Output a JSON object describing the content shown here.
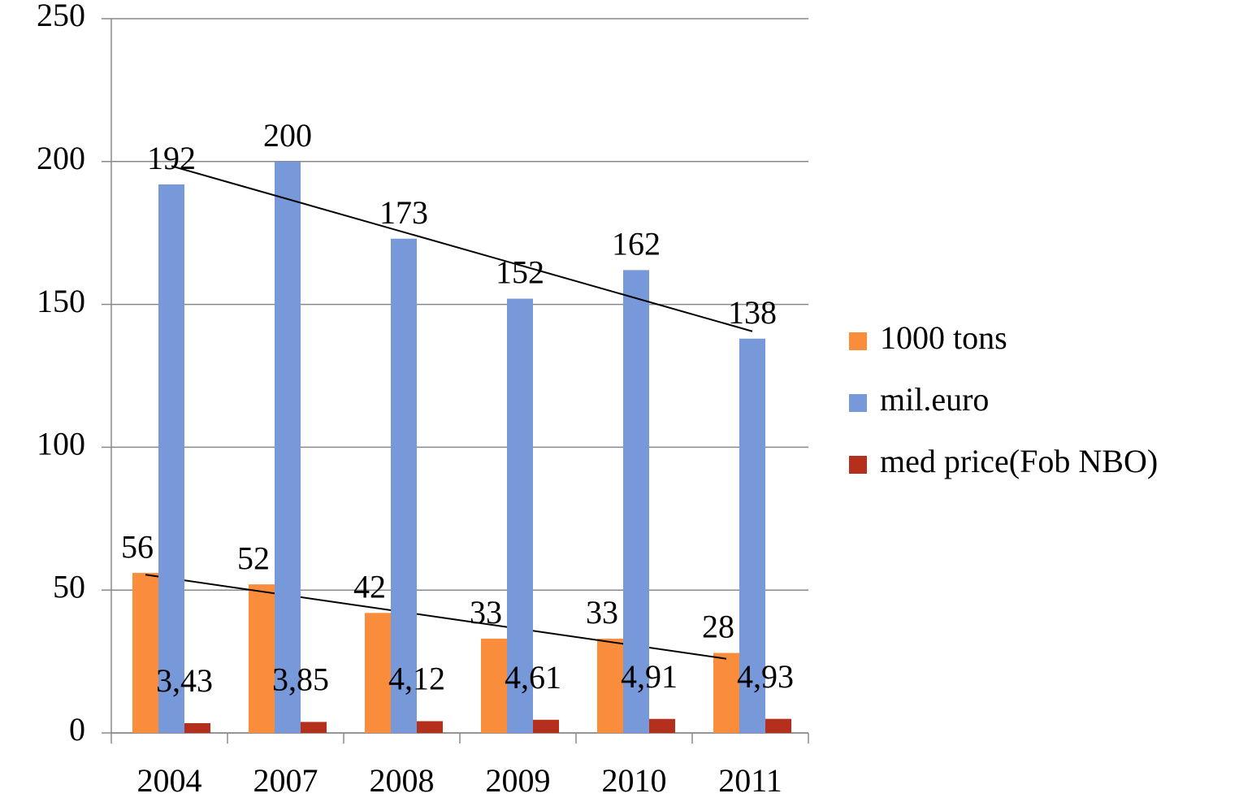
{
  "chart_data": {
    "type": "bar",
    "categories": [
      "2004",
      "2007",
      "2008",
      "2009",
      "2010",
      "2011"
    ],
    "series": [
      {
        "name": "1000 tons",
        "color": "#f98d3c",
        "values": [
          56,
          52,
          42,
          33,
          33,
          28
        ],
        "trendline": "linear"
      },
      {
        "name": "mil.euro",
        "color": "#7799d9",
        "values": [
          192,
          200,
          173,
          152,
          162,
          138
        ],
        "trendline": "linear"
      },
      {
        "name": "med price(Fob NBO)",
        "color": "#b5301c",
        "values": [
          3.43,
          3.85,
          4.12,
          4.61,
          4.91,
          4.93
        ],
        "value_labels": [
          "3,43",
          "3,85",
          "4,12",
          "4,61",
          "4,91",
          "4,93"
        ]
      }
    ],
    "ylim": [
      0,
      250
    ],
    "yticks": [
      0,
      50,
      100,
      150,
      200,
      250
    ],
    "grid": true,
    "legend": "right"
  }
}
